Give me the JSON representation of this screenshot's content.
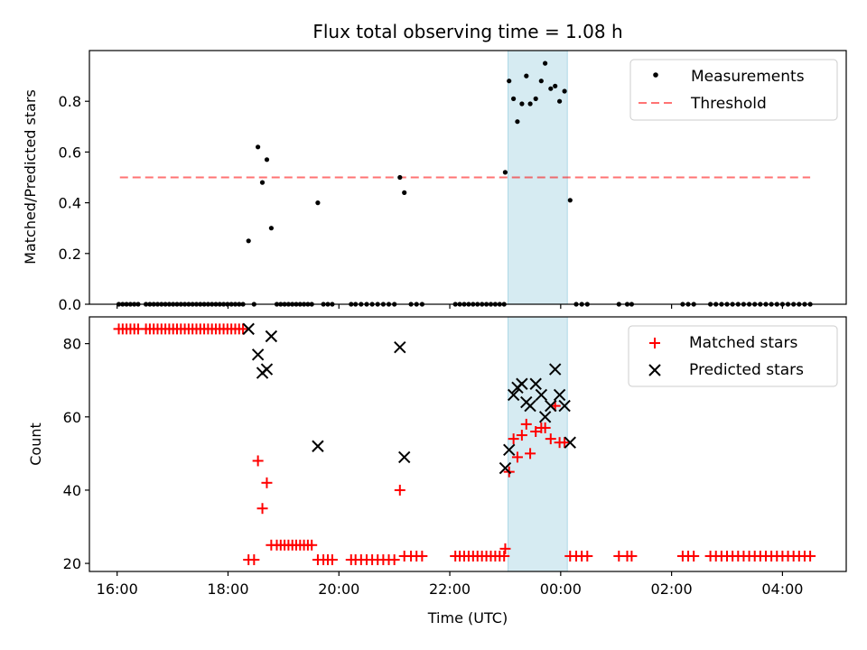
{
  "chart_data": [
    {
      "type": "scatter",
      "title": "Flux total observing time = 1.08 h",
      "xlabel": "",
      "ylabel": "Matched/Predicted stars",
      "xlim": [
        15.5,
        29.15
      ],
      "ylim": [
        0.0,
        1.0
      ],
      "yticks": [
        0.0,
        0.2,
        0.4,
        0.6,
        0.8
      ],
      "ytick_labels": [
        "0.0",
        "0.2",
        "0.4",
        "0.6",
        "0.8"
      ],
      "highlight_span": [
        23.05,
        24.12
      ],
      "threshold": {
        "value": 0.5,
        "x_start": 16.05,
        "x_end": 28.5
      },
      "legend": {
        "position": "top-right",
        "entries": [
          "Measurements",
          "Threshold"
        ]
      },
      "series": [
        {
          "name": "Measurements",
          "points": [
            [
              16.03,
              0
            ],
            [
              16.1,
              0
            ],
            [
              16.17,
              0
            ],
            [
              16.24,
              0
            ],
            [
              16.31,
              0
            ],
            [
              16.38,
              0
            ],
            [
              16.52,
              0
            ],
            [
              16.59,
              0
            ],
            [
              16.66,
              0
            ],
            [
              16.73,
              0
            ],
            [
              16.8,
              0
            ],
            [
              16.87,
              0
            ],
            [
              16.94,
              0
            ],
            [
              17.01,
              0
            ],
            [
              17.08,
              0
            ],
            [
              17.15,
              0
            ],
            [
              17.22,
              0
            ],
            [
              17.29,
              0
            ],
            [
              17.36,
              0
            ],
            [
              17.43,
              0
            ],
            [
              17.5,
              0
            ],
            [
              17.57,
              0
            ],
            [
              17.64,
              0
            ],
            [
              17.71,
              0
            ],
            [
              17.78,
              0
            ],
            [
              17.85,
              0
            ],
            [
              17.92,
              0
            ],
            [
              17.99,
              0
            ],
            [
              18.06,
              0
            ],
            [
              18.13,
              0
            ],
            [
              18.2,
              0
            ],
            [
              18.27,
              0
            ],
            [
              18.37,
              0.25
            ],
            [
              18.47,
              0
            ],
            [
              18.54,
              0.62
            ],
            [
              18.62,
              0.48
            ],
            [
              18.7,
              0.57
            ],
            [
              18.78,
              0.3
            ],
            [
              18.88,
              0
            ],
            [
              18.95,
              0
            ],
            [
              19.02,
              0
            ],
            [
              19.09,
              0
            ],
            [
              19.16,
              0
            ],
            [
              19.23,
              0
            ],
            [
              19.3,
              0
            ],
            [
              19.37,
              0
            ],
            [
              19.44,
              0
            ],
            [
              19.51,
              0
            ],
            [
              19.62,
              0.4
            ],
            [
              19.72,
              0
            ],
            [
              19.8,
              0
            ],
            [
              19.88,
              0
            ],
            [
              20.22,
              0
            ],
            [
              20.3,
              0
            ],
            [
              20.4,
              0
            ],
            [
              20.5,
              0
            ],
            [
              20.6,
              0
            ],
            [
              20.7,
              0
            ],
            [
              20.8,
              0
            ],
            [
              20.9,
              0
            ],
            [
              21.0,
              0
            ],
            [
              21.1,
              0.5
            ],
            [
              21.18,
              0.44
            ],
            [
              21.3,
              0
            ],
            [
              21.4,
              0
            ],
            [
              21.5,
              0
            ],
            [
              22.1,
              0
            ],
            [
              22.18,
              0
            ],
            [
              22.26,
              0
            ],
            [
              22.34,
              0
            ],
            [
              22.42,
              0
            ],
            [
              22.5,
              0
            ],
            [
              22.58,
              0
            ],
            [
              22.66,
              0
            ],
            [
              22.74,
              0
            ],
            [
              22.82,
              0
            ],
            [
              22.9,
              0
            ],
            [
              22.98,
              0
            ],
            [
              23.0,
              0.52
            ],
            [
              23.07,
              0.88
            ],
            [
              23.15,
              0.81
            ],
            [
              23.22,
              0.72
            ],
            [
              23.3,
              0.79
            ],
            [
              23.38,
              0.9
            ],
            [
              23.45,
              0.79
            ],
            [
              23.55,
              0.81
            ],
            [
              23.65,
              0.88
            ],
            [
              23.72,
              0.95
            ],
            [
              23.82,
              0.85
            ],
            [
              23.9,
              0.86
            ],
            [
              23.98,
              0.8
            ],
            [
              24.07,
              0.84
            ],
            [
              24.17,
              0.41
            ],
            [
              24.28,
              0
            ],
            [
              24.38,
              0
            ],
            [
              24.48,
              0
            ],
            [
              25.05,
              0
            ],
            [
              25.2,
              0
            ],
            [
              25.28,
              0
            ],
            [
              26.2,
              0
            ],
            [
              26.3,
              0
            ],
            [
              26.4,
              0
            ],
            [
              26.7,
              0
            ],
            [
              26.8,
              0
            ],
            [
              26.9,
              0
            ],
            [
              27.0,
              0
            ],
            [
              27.1,
              0
            ],
            [
              27.2,
              0
            ],
            [
              27.3,
              0
            ],
            [
              27.4,
              0
            ],
            [
              27.5,
              0
            ],
            [
              27.6,
              0
            ],
            [
              27.7,
              0
            ],
            [
              27.8,
              0
            ],
            [
              27.9,
              0
            ],
            [
              28.0,
              0
            ],
            [
              28.1,
              0
            ],
            [
              28.2,
              0
            ],
            [
              28.3,
              0
            ],
            [
              28.4,
              0
            ],
            [
              28.5,
              0
            ]
          ]
        }
      ]
    },
    {
      "type": "scatter",
      "title": "",
      "xlabel": "Time (UTC)",
      "ylabel": "Count",
      "xlim": [
        15.5,
        29.15
      ],
      "ylim": [
        17.8,
        87.3
      ],
      "yticks": [
        20,
        40,
        60,
        80
      ],
      "ytick_labels": [
        "20",
        "40",
        "60",
        "80"
      ],
      "xticks": [
        16,
        18,
        20,
        22,
        24,
        26,
        28
      ],
      "xtick_labels": [
        "16:00",
        "18:00",
        "20:00",
        "22:00",
        "00:00",
        "02:00",
        "04:00"
      ],
      "highlight_span": [
        23.05,
        24.12
      ],
      "legend": {
        "position": "top-right",
        "entries": [
          "Matched stars",
          "Predicted stars"
        ]
      },
      "series": [
        {
          "name": "Matched stars",
          "points": [
            [
              16.03,
              84
            ],
            [
              16.1,
              84
            ],
            [
              16.17,
              84
            ],
            [
              16.24,
              84
            ],
            [
              16.31,
              84
            ],
            [
              16.38,
              84
            ],
            [
              16.52,
              84
            ],
            [
              16.59,
              84
            ],
            [
              16.66,
              84
            ],
            [
              16.73,
              84
            ],
            [
              16.8,
              84
            ],
            [
              16.87,
              84
            ],
            [
              16.94,
              84
            ],
            [
              17.01,
              84
            ],
            [
              17.08,
              84
            ],
            [
              17.15,
              84
            ],
            [
              17.22,
              84
            ],
            [
              17.29,
              84
            ],
            [
              17.36,
              84
            ],
            [
              17.43,
              84
            ],
            [
              17.5,
              84
            ],
            [
              17.57,
              84
            ],
            [
              17.64,
              84
            ],
            [
              17.71,
              84
            ],
            [
              17.78,
              84
            ],
            [
              17.85,
              84
            ],
            [
              17.92,
              84
            ],
            [
              17.99,
              84
            ],
            [
              18.06,
              84
            ],
            [
              18.13,
              84
            ],
            [
              18.2,
              84
            ],
            [
              18.27,
              84
            ],
            [
              18.37,
              21
            ],
            [
              18.47,
              21
            ],
            [
              18.54,
              48
            ],
            [
              18.62,
              35
            ],
            [
              18.7,
              42
            ],
            [
              18.78,
              25
            ],
            [
              18.88,
              25
            ],
            [
              18.95,
              25
            ],
            [
              19.02,
              25
            ],
            [
              19.09,
              25
            ],
            [
              19.16,
              25
            ],
            [
              19.23,
              25
            ],
            [
              19.3,
              25
            ],
            [
              19.37,
              25
            ],
            [
              19.44,
              25
            ],
            [
              19.51,
              25
            ],
            [
              19.62,
              21
            ],
            [
              19.72,
              21
            ],
            [
              19.8,
              21
            ],
            [
              19.88,
              21
            ],
            [
              20.22,
              21
            ],
            [
              20.3,
              21
            ],
            [
              20.4,
              21
            ],
            [
              20.5,
              21
            ],
            [
              20.6,
              21
            ],
            [
              20.7,
              21
            ],
            [
              20.8,
              21
            ],
            [
              20.9,
              21
            ],
            [
              21.0,
              21
            ],
            [
              21.1,
              40
            ],
            [
              21.18,
              22
            ],
            [
              21.3,
              22
            ],
            [
              21.4,
              22
            ],
            [
              21.5,
              22
            ],
            [
              22.1,
              22
            ],
            [
              22.18,
              22
            ],
            [
              22.26,
              22
            ],
            [
              22.34,
              22
            ],
            [
              22.42,
              22
            ],
            [
              22.5,
              22
            ],
            [
              22.58,
              22
            ],
            [
              22.66,
              22
            ],
            [
              22.74,
              22
            ],
            [
              22.82,
              22
            ],
            [
              22.9,
              22
            ],
            [
              22.98,
              22
            ],
            [
              23.0,
              24
            ],
            [
              23.07,
              45
            ],
            [
              23.15,
              54
            ],
            [
              23.22,
              49
            ],
            [
              23.3,
              55
            ],
            [
              23.38,
              58
            ],
            [
              23.45,
              50
            ],
            [
              23.55,
              56
            ],
            [
              23.65,
              57
            ],
            [
              23.72,
              57
            ],
            [
              23.82,
              54
            ],
            [
              23.9,
              63
            ],
            [
              23.98,
              53
            ],
            [
              24.07,
              53
            ],
            [
              24.17,
              22
            ],
            [
              24.28,
              22
            ],
            [
              24.38,
              22
            ],
            [
              24.48,
              22
            ],
            [
              25.05,
              22
            ],
            [
              25.2,
              22
            ],
            [
              25.28,
              22
            ],
            [
              26.2,
              22
            ],
            [
              26.3,
              22
            ],
            [
              26.4,
              22
            ],
            [
              26.7,
              22
            ],
            [
              26.8,
              22
            ],
            [
              26.9,
              22
            ],
            [
              27.0,
              22
            ],
            [
              27.1,
              22
            ],
            [
              27.2,
              22
            ],
            [
              27.3,
              22
            ],
            [
              27.4,
              22
            ],
            [
              27.5,
              22
            ],
            [
              27.6,
              22
            ],
            [
              27.7,
              22
            ],
            [
              27.8,
              22
            ],
            [
              27.9,
              22
            ],
            [
              28.0,
              22
            ],
            [
              28.1,
              22
            ],
            [
              28.2,
              22
            ],
            [
              28.3,
              22
            ],
            [
              28.4,
              22
            ],
            [
              28.5,
              22
            ]
          ]
        },
        {
          "name": "Predicted stars",
          "points": [
            [
              18.37,
              84
            ],
            [
              18.54,
              77
            ],
            [
              18.62,
              72
            ],
            [
              18.7,
              73
            ],
            [
              18.78,
              82
            ],
            [
              19.62,
              52
            ],
            [
              21.1,
              79
            ],
            [
              21.18,
              49
            ],
            [
              23.0,
              46
            ],
            [
              23.07,
              51
            ],
            [
              23.15,
              66
            ],
            [
              23.22,
              68
            ],
            [
              23.3,
              69
            ],
            [
              23.38,
              64
            ],
            [
              23.45,
              63
            ],
            [
              23.55,
              69
            ],
            [
              23.65,
              66
            ],
            [
              23.72,
              60
            ],
            [
              23.82,
              63
            ],
            [
              23.9,
              73
            ],
            [
              23.98,
              66
            ],
            [
              24.07,
              63
            ],
            [
              24.17,
              53
            ]
          ]
        }
      ]
    }
  ]
}
